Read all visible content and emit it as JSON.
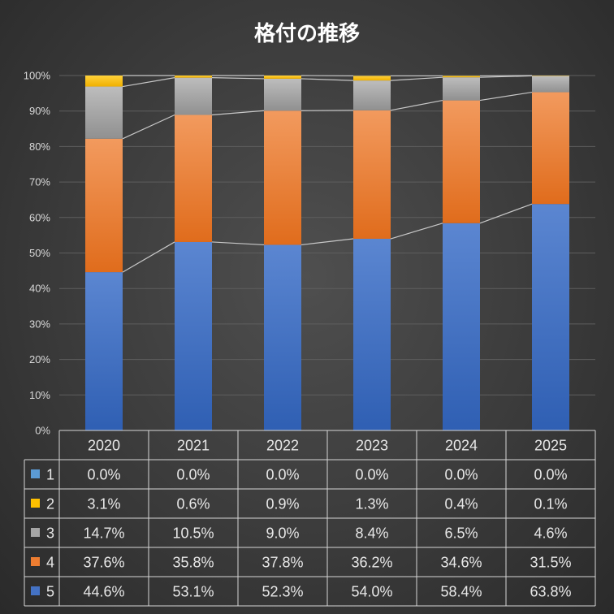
{
  "chart_data": {
    "type": "bar",
    "stacked": "percent",
    "title": "格付の推移",
    "categories": [
      "2020",
      "2021",
      "2022",
      "2023",
      "2024",
      "2025"
    ],
    "y_ticks": [
      "0%",
      "10%",
      "20%",
      "30%",
      "40%",
      "50%",
      "60%",
      "70%",
      "80%",
      "90%",
      "100%"
    ],
    "ylim": [
      0,
      100
    ],
    "grid": true,
    "legend": "data-table-below",
    "series": [
      {
        "name": "5",
        "color": "#4472c4",
        "values": [
          44.6,
          53.1,
          52.3,
          54.0,
          58.4,
          63.8
        ],
        "labels": [
          "44.6%",
          "53.1%",
          "52.3%",
          "54.0%",
          "58.4%",
          "63.8%"
        ]
      },
      {
        "name": "4",
        "color": "#ed7d31",
        "values": [
          37.6,
          35.8,
          37.8,
          36.2,
          34.6,
          31.5
        ],
        "labels": [
          "37.6%",
          "35.8%",
          "37.8%",
          "36.2%",
          "34.6%",
          "31.5%"
        ]
      },
      {
        "name": "3",
        "color": "#a5a5a5",
        "values": [
          14.7,
          10.5,
          9.0,
          8.4,
          6.5,
          4.6
        ],
        "labels": [
          "14.7%",
          "10.5%",
          "9.0%",
          "8.4%",
          "6.5%",
          "4.6%"
        ]
      },
      {
        "name": "2",
        "color": "#ffc000",
        "values": [
          3.1,
          0.6,
          0.9,
          1.3,
          0.4,
          0.1
        ],
        "labels": [
          "3.1%",
          "0.6%",
          "0.9%",
          "1.3%",
          "0.4%",
          "0.1%"
        ]
      },
      {
        "name": "1",
        "color": "#5b9bd5",
        "values": [
          0.0,
          0.0,
          0.0,
          0.0,
          0.0,
          0.0
        ],
        "labels": [
          "0.0%",
          "0.0%",
          "0.0%",
          "0.0%",
          "0.0%",
          "0.0%"
        ]
      }
    ],
    "table_row_order": [
      "1",
      "2",
      "3",
      "4",
      "5"
    ]
  }
}
